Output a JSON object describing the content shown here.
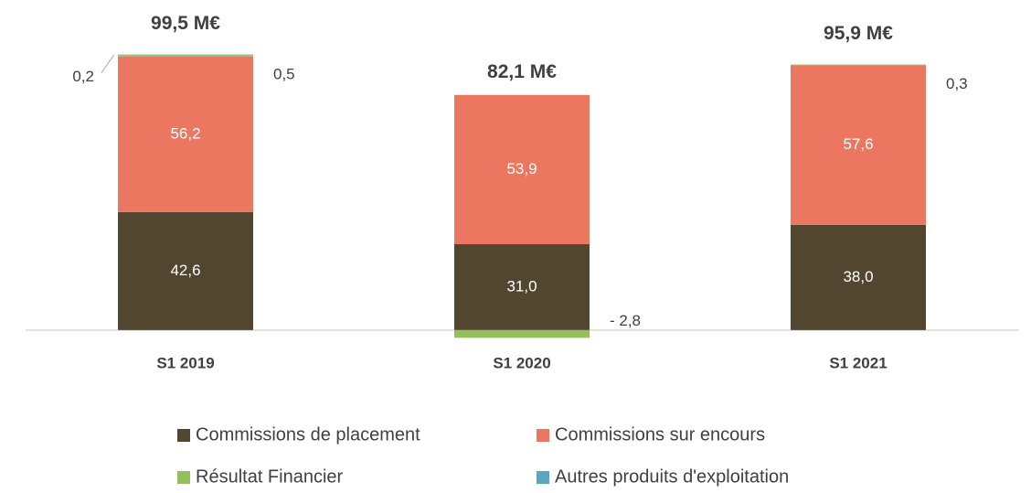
{
  "chart_data": {
    "type": "stacked_bar",
    "categories": [
      "S1 2019",
      "S1 2020",
      "S1 2021"
    ],
    "series": [
      {
        "name": "Commissions de placement",
        "color": "#524630",
        "values": [
          42.6,
          31.0,
          38.0
        ],
        "value_labels": [
          "42,6",
          "31,0",
          "38,0"
        ]
      },
      {
        "name": "Commissions sur encours",
        "color": "#ec7760",
        "values": [
          56.2,
          53.9,
          57.6
        ],
        "value_labels": [
          "56,2",
          "53,9",
          "57,6"
        ]
      },
      {
        "name": "Résultat Financier",
        "color": "#93c05a",
        "values": [
          0.5,
          -2.8,
          0.3
        ],
        "value_labels": [
          "0,5",
          "- 2,8",
          "0,3"
        ]
      },
      {
        "name": "Autres produits d'exploitation",
        "color": "#5ba5c2",
        "values": [
          0.2,
          0,
          0
        ],
        "value_labels": [
          "0,2",
          null,
          null
        ]
      }
    ],
    "totals": {
      "values": [
        99.5,
        82.1,
        95.9
      ],
      "value_labels": [
        "99,5 M€",
        "82,1 M€",
        "95,9 M€"
      ]
    },
    "ylim": [
      -5,
      105
    ]
  }
}
